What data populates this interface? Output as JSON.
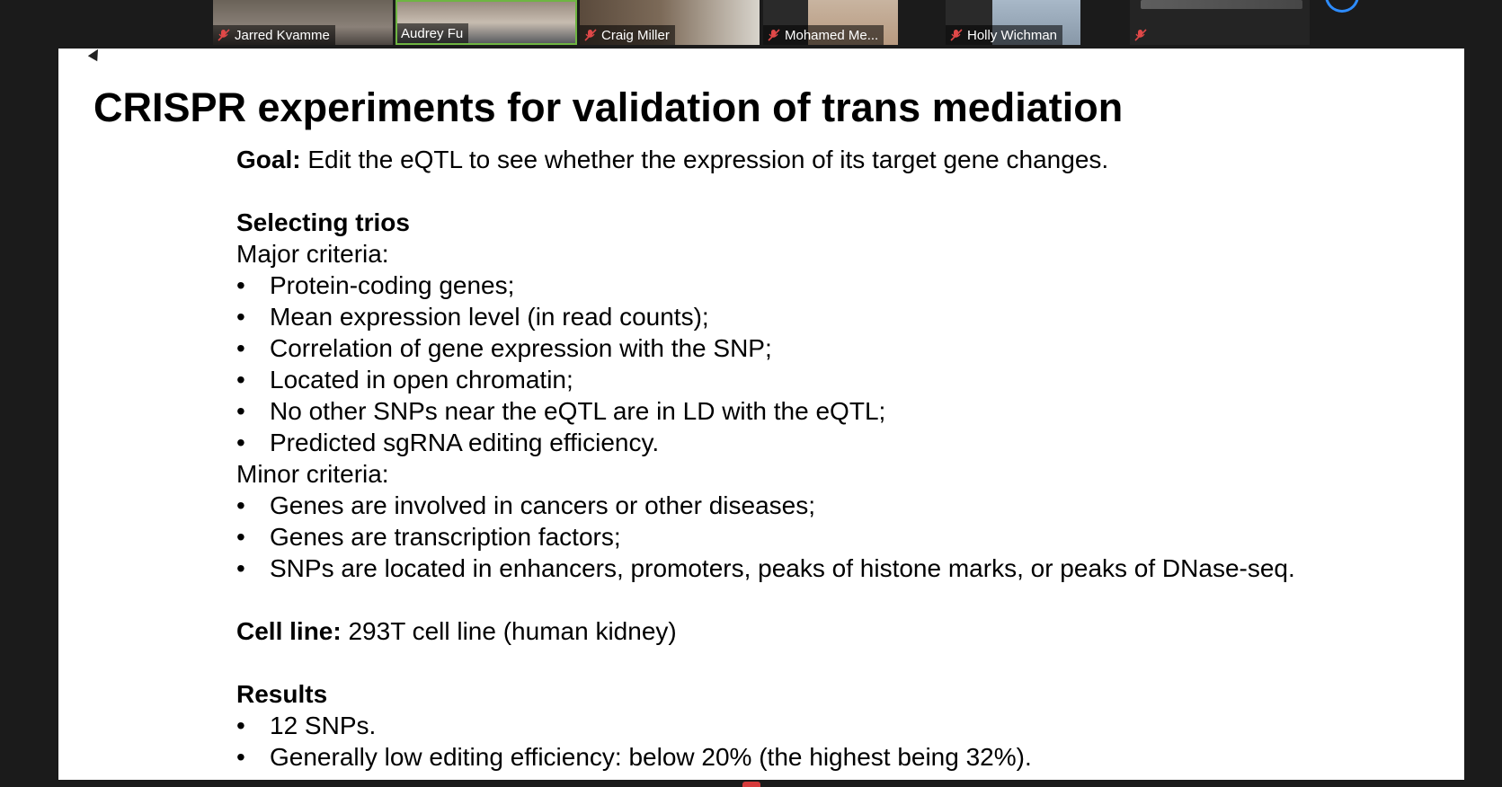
{
  "participants": [
    {
      "name": "Jarred Kvamme",
      "muted": true
    },
    {
      "name": "Audrey Fu",
      "muted": false
    },
    {
      "name": "Craig Miller",
      "muted": true
    },
    {
      "name": "Mohamed Me...",
      "muted": true
    },
    {
      "name": "Holly Wichman",
      "muted": true
    },
    {
      "name": "",
      "muted": true
    }
  ],
  "slide": {
    "title": "CRISPR experiments for validation of trans mediation",
    "goal_label": "Goal:",
    "goal_text": " Edit the eQTL to see whether the expression of its target gene changes.",
    "selecting_heading": "Selecting trios",
    "major_label": "Major criteria:",
    "major_items": [
      "Protein-coding genes;",
      "Mean expression level (in read counts);",
      "Correlation of gene expression with the SNP;",
      "Located in open chromatin;",
      "No other SNPs near the eQTL are in LD with the eQTL;",
      "Predicted sgRNA editing efficiency."
    ],
    "minor_label": "Minor criteria:",
    "minor_items": [
      "Genes are involved in cancers or other diseases;",
      "Genes are transcription factors;",
      "SNPs are located in enhancers, promoters, peaks of histone marks, or peaks of DNase-seq."
    ],
    "cell_line_label": "Cell line:",
    "cell_line_text": " 293T cell line (human kidney)",
    "results_heading": "Results",
    "result_items": [
      "12 SNPs.",
      "Generally low editing efficiency: below 20% (the highest being 32%)."
    ],
    "bullet_char": "•"
  },
  "colors": {
    "active_speaker_border": "#6fb542",
    "mute_icon": "#e04848",
    "background": "#1b1b1b"
  }
}
